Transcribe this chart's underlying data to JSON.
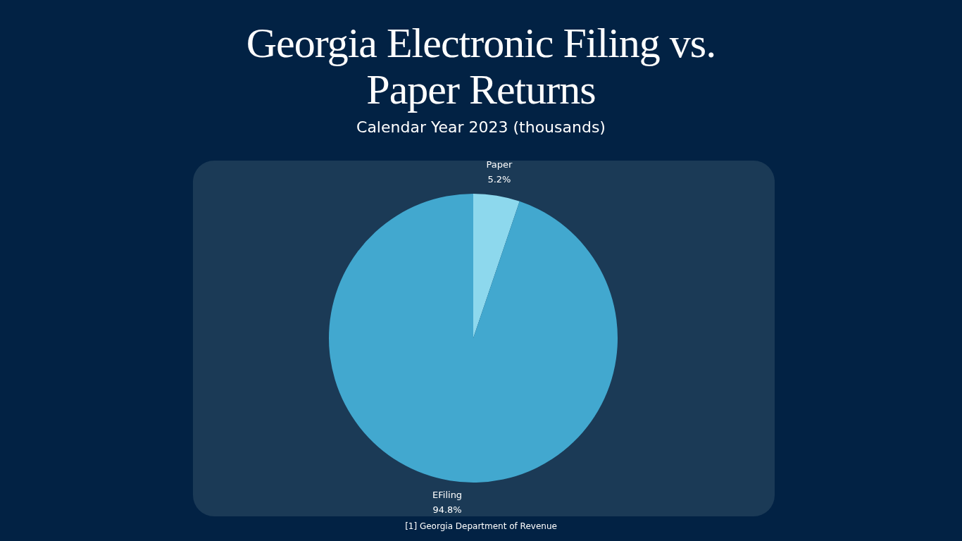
{
  "chart_data": {
    "type": "pie",
    "title": "Georgia Electronic Filing vs. Paper Returns",
    "subtitle": "Calendar Year 2023 (thousands)",
    "categories": [
      "Paper",
      "EFiling"
    ],
    "values": [
      5.2,
      94.8
    ],
    "value_labels": [
      "5.2%",
      "94.8%"
    ],
    "colors": [
      "#8dd8ed",
      "#42a8cf"
    ],
    "annotations": [
      "[1] Georgia Department of Revenue"
    ]
  }
}
